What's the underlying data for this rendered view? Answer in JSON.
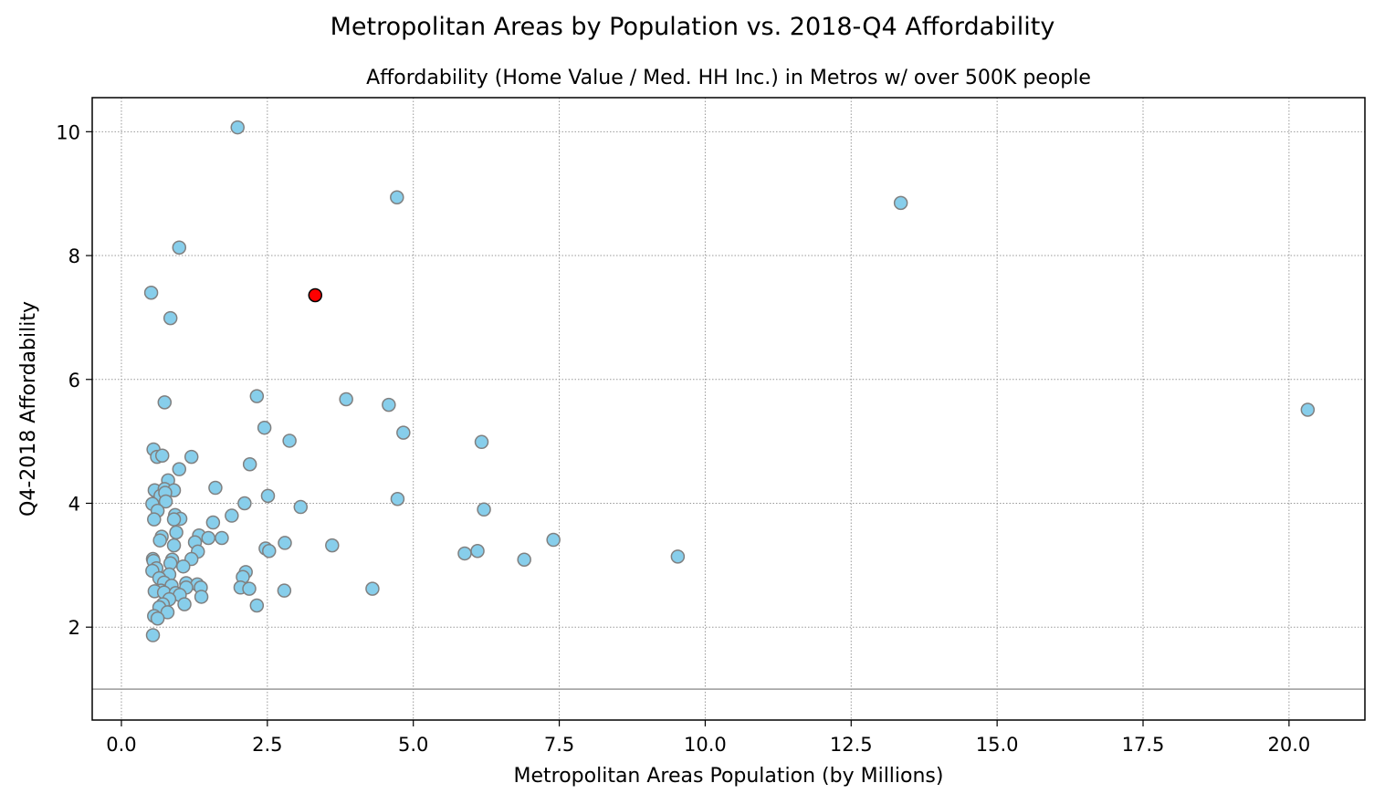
{
  "figure": {
    "suptitle": "Metropolitan Areas by Population vs. 2018-Q4 Affordability"
  },
  "chart_data": {
    "type": "scatter",
    "title": "Affordability (Home Value / Med. HH Inc.) in Metros w/ over 500K people",
    "xlabel": "Metropolitan Areas Population (by Millions)",
    "ylabel": "Q4-2018 Affordability",
    "xlim": [
      -0.5,
      21.3
    ],
    "ylim": [
      0.5,
      10.55
    ],
    "xticks": [
      0.0,
      2.5,
      5.0,
      7.5,
      10.0,
      12.5,
      15.0,
      17.5,
      20.0
    ],
    "xtick_labels": [
      "0.0",
      "2.5",
      "5.0",
      "7.5",
      "10.0",
      "12.5",
      "15.0",
      "17.5",
      "20.0"
    ],
    "yticks": [
      2,
      4,
      6,
      8,
      10
    ],
    "ytick_labels": [
      "2",
      "4",
      "6",
      "8",
      "10"
    ],
    "grid": true,
    "reference_line_y": 1.0,
    "colors": {
      "point_fill": "#87ceeb",
      "point_edge": "#808080",
      "highlight_fill": "#ff0000",
      "highlight_edge": "#000000",
      "grid": "#999999",
      "reference_line": "#999999"
    },
    "points": [
      [
        1.99,
        10.07
      ],
      [
        4.72,
        8.94
      ],
      [
        13.35,
        8.85
      ],
      [
        0.99,
        8.13
      ],
      [
        0.51,
        7.4
      ],
      [
        0.84,
        6.99
      ],
      [
        20.32,
        5.51
      ],
      [
        0.74,
        5.63
      ],
      [
        2.32,
        5.73
      ],
      [
        3.85,
        5.68
      ],
      [
        4.58,
        5.59
      ],
      [
        2.45,
        5.22
      ],
      [
        4.83,
        5.14
      ],
      [
        2.88,
        5.01
      ],
      [
        6.17,
        4.99
      ],
      [
        0.55,
        4.87
      ],
      [
        0.61,
        4.75
      ],
      [
        0.7,
        4.77
      ],
      [
        1.2,
        4.75
      ],
      [
        2.2,
        4.63
      ],
      [
        0.99,
        4.55
      ],
      [
        0.8,
        4.37
      ],
      [
        1.61,
        4.25
      ],
      [
        0.57,
        4.21
      ],
      [
        0.74,
        4.23
      ],
      [
        0.9,
        4.21
      ],
      [
        0.67,
        4.12
      ],
      [
        0.75,
        4.17
      ],
      [
        2.51,
        4.12
      ],
      [
        4.73,
        4.07
      ],
      [
        0.76,
        4.03
      ],
      [
        2.11,
        4.0
      ],
      [
        0.53,
        3.99
      ],
      [
        3.07,
        3.94
      ],
      [
        6.21,
        3.9
      ],
      [
        0.62,
        3.88
      ],
      [
        1.89,
        3.8
      ],
      [
        0.92,
        3.81
      ],
      [
        1.01,
        3.75
      ],
      [
        0.56,
        3.74
      ],
      [
        0.9,
        3.74
      ],
      [
        1.57,
        3.69
      ],
      [
        0.94,
        3.53
      ],
      [
        1.33,
        3.48
      ],
      [
        0.69,
        3.46
      ],
      [
        1.49,
        3.44
      ],
      [
        1.72,
        3.44
      ],
      [
        0.66,
        3.4
      ],
      [
        7.4,
        3.41
      ],
      [
        1.26,
        3.37
      ],
      [
        2.8,
        3.36
      ],
      [
        3.61,
        3.32
      ],
      [
        0.9,
        3.32
      ],
      [
        2.47,
        3.27
      ],
      [
        2.53,
        3.23
      ],
      [
        6.1,
        3.23
      ],
      [
        1.31,
        3.22
      ],
      [
        5.88,
        3.19
      ],
      [
        9.53,
        3.14
      ],
      [
        0.54,
        3.1
      ],
      [
        1.2,
        3.1
      ],
      [
        0.87,
        3.09
      ],
      [
        6.9,
        3.09
      ],
      [
        0.55,
        3.07
      ],
      [
        0.84,
        3.03
      ],
      [
        1.06,
        2.98
      ],
      [
        0.6,
        2.95
      ],
      [
        0.53,
        2.91
      ],
      [
        2.13,
        2.89
      ],
      [
        0.82,
        2.85
      ],
      [
        2.08,
        2.81
      ],
      [
        0.65,
        2.79
      ],
      [
        0.73,
        2.72
      ],
      [
        1.11,
        2.71
      ],
      [
        1.3,
        2.69
      ],
      [
        0.86,
        2.67
      ],
      [
        1.36,
        2.64
      ],
      [
        1.11,
        2.64
      ],
      [
        2.04,
        2.64
      ],
      [
        2.19,
        2.62
      ],
      [
        4.3,
        2.62
      ],
      [
        0.68,
        2.59
      ],
      [
        2.79,
        2.59
      ],
      [
        0.57,
        2.58
      ],
      [
        0.73,
        2.56
      ],
      [
        0.93,
        2.55
      ],
      [
        1.0,
        2.52
      ],
      [
        1.37,
        2.49
      ],
      [
        0.82,
        2.45
      ],
      [
        0.71,
        2.37
      ],
      [
        1.08,
        2.37
      ],
      [
        2.32,
        2.35
      ],
      [
        0.65,
        2.32
      ],
      [
        0.79,
        2.24
      ],
      [
        0.56,
        2.18
      ],
      [
        0.62,
        2.14
      ],
      [
        0.54,
        1.87
      ]
    ],
    "highlight_points": [
      [
        3.32,
        7.36
      ]
    ]
  }
}
